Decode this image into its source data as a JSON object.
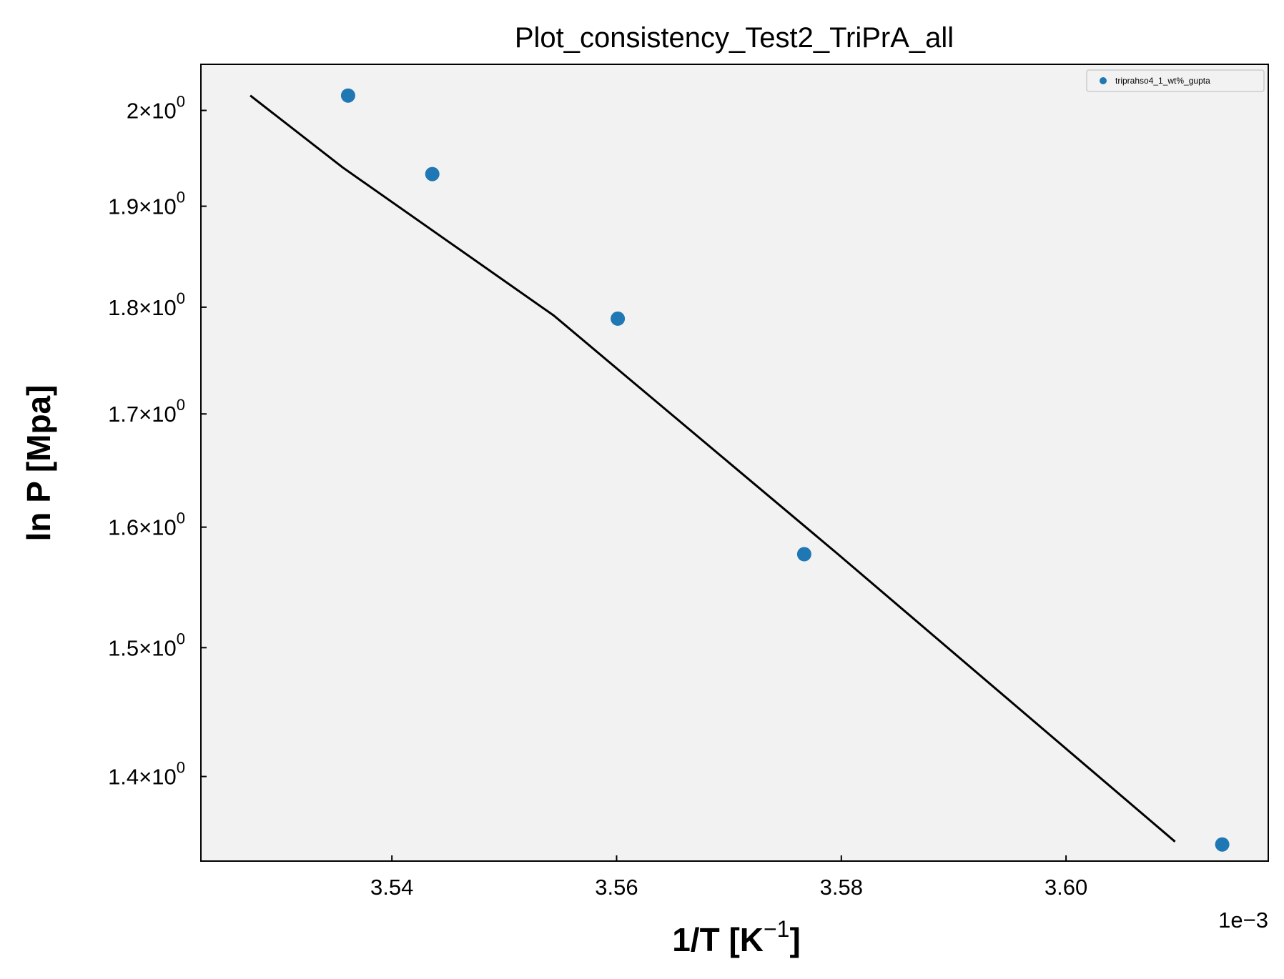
{
  "chart_data": {
    "type": "scatter",
    "title": "Plot_consistency_Test2_TriPrA_all",
    "xlabel": "1/T [K",
    "xlabel_sup": "−1",
    "xlabel_end": "]",
    "ylabel": "ln P [Mpa]",
    "x_offset_label": "1e−3",
    "xlim": [
      3.523,
      3.618
    ],
    "ylim": [
      1.338,
      2.05
    ],
    "yscale": "log",
    "grid": false,
    "legend_position": "top-right",
    "x_ticks": [
      {
        "value": 3.54,
        "label": "3.54"
      },
      {
        "value": 3.56,
        "label": "3.56"
      },
      {
        "value": 3.58,
        "label": "3.58"
      },
      {
        "value": 3.6,
        "label": "3.60"
      }
    ],
    "y_ticks": [
      {
        "value": 1.4,
        "label": "1.4×10",
        "exp": "0"
      },
      {
        "value": 1.5,
        "label": "1.5×10",
        "exp": "0"
      },
      {
        "value": 1.6,
        "label": "1.6×10",
        "exp": "0"
      },
      {
        "value": 1.7,
        "label": "1.7×10",
        "exp": "0"
      },
      {
        "value": 1.8,
        "label": "1.8×10",
        "exp": "0"
      },
      {
        "value": 1.9,
        "label": "1.9×10",
        "exp": "0"
      },
      {
        "value": 2.0,
        "label": "2×10",
        "exp": "0"
      }
    ],
    "series": [
      {
        "name": "triprahso4_1_wt%_gupta",
        "kind": "scatter",
        "color": "#1f77b4",
        "points": [
          {
            "x": 3.5361,
            "y": 2.016
          },
          {
            "x": 3.5436,
            "y": 1.933
          },
          {
            "x": 3.5601,
            "y": 1.789
          },
          {
            "x": 3.5767,
            "y": 1.577
          },
          {
            "x": 3.6139,
            "y": 1.35
          }
        ]
      },
      {
        "kind": "line",
        "color": "#000000",
        "points": [
          {
            "x": 3.5274,
            "y": 2.016
          },
          {
            "x": 3.5356,
            "y": 1.94
          },
          {
            "x": 3.5544,
            "y": 1.792
          },
          {
            "x": 3.5797,
            "y": 1.577
          },
          {
            "x": 3.6097,
            "y": 1.352
          }
        ]
      }
    ],
    "colors": {
      "plot_background": "#f2f2f2",
      "scatter": "#1f77b4",
      "fit_line": "#000000"
    }
  }
}
